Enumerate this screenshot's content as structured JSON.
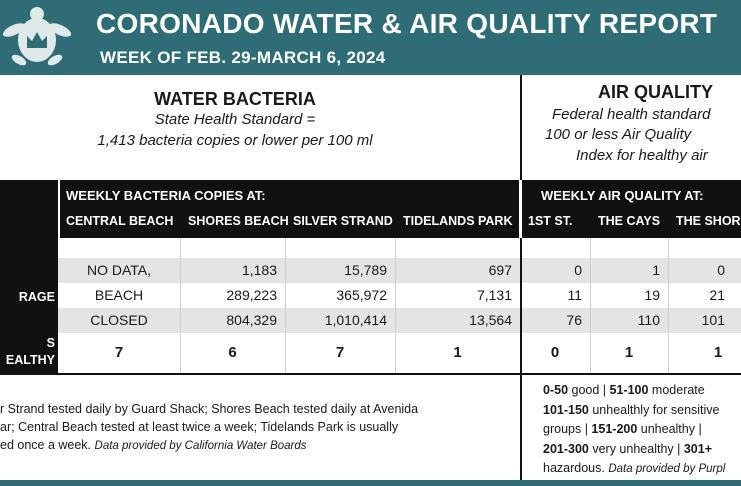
{
  "header": {
    "title": "CORONADO WATER & AIR QUALITY REPORT",
    "subtitle": "WEEK OF FEB. 29-MARCH 6, 2024"
  },
  "water": {
    "title": "WATER BACTERIA",
    "standard": [
      "State Health Standard  =",
      "1,413 bacteria copies or lower per 100 ml"
    ]
  },
  "air": {
    "title": "AIR QUALITY",
    "standard": [
      "Federal health standard",
      "100 or less Air Quality",
      "Index for healthy air"
    ]
  },
  "table": {
    "water_group": "WEEKLY BACTERIA COPIES AT:",
    "air_group": "WEEKLY AIR QUALITY AT:",
    "columns": [
      "CENTRAL BEACH",
      "SHORES BEACH",
      "SILVER STRAND",
      "TIDELANDS PARK",
      "1ST ST.",
      "THE CAYS",
      "THE SHORES"
    ],
    "row_labels": [
      null,
      "RAGE",
      null,
      "S EALTHY"
    ],
    "rows": [
      [
        "NO DATA,",
        "1,183",
        "15,789",
        "697",
        "0",
        "1",
        "0"
      ],
      [
        "BEACH",
        "289,223",
        "365,972",
        "7,131",
        "11",
        "19",
        "21"
      ],
      [
        "CLOSED",
        "804,329",
        "1,010,414",
        "13,564",
        "76",
        "110",
        "101"
      ],
      [
        "7",
        "6",
        "7",
        "1",
        "0",
        "1",
        "1"
      ]
    ]
  },
  "footnote": {
    "lines": [
      "r Strand tested daily by Guard Shack; Shores Beach tested daily at Avenida",
      "ar; Central Beach tested at least twice a week; Tidelands Park is usually",
      "ed once a week. "
    ],
    "source": "Data provided by California Water Boards"
  },
  "legend": [
    [
      "0-50",
      " good | ",
      "51-100",
      " moderate"
    ],
    [
      "101-150",
      " unhealthly for sensitive"
    ],
    [
      "groups | ",
      "151-200",
      " unhealthy |"
    ],
    [
      "201-300",
      " very unhealthy | ",
      "301+"
    ],
    [
      "hazardous. ",
      "Data provided by Purpl"
    ]
  ]
}
